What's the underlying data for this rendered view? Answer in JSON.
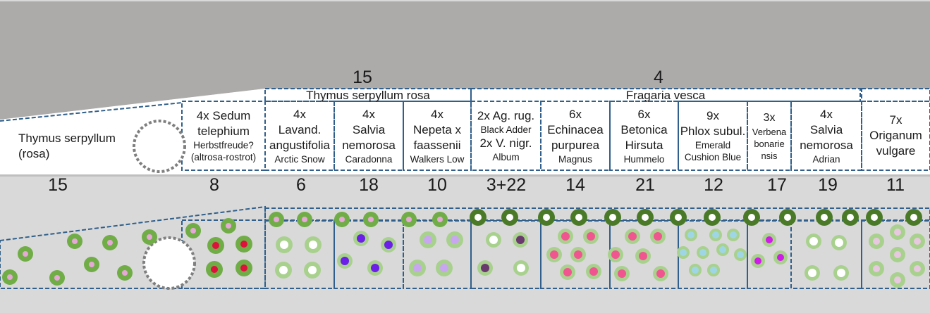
{
  "top_numbers": [
    "15",
    "4"
  ],
  "groups": [
    "Thymus serpyllum rosa",
    "Fragaria vesca"
  ],
  "beds": [
    {
      "big": [
        "Thymus serpyllum",
        "(rosa)"
      ],
      "small": []
    },
    {
      "big": [
        "4x Sedum",
        "telephium"
      ],
      "small": [
        "Herbstfreude?",
        "(altrosa-rostrot)"
      ]
    },
    {
      "big": [
        "4x",
        "Lavand.",
        "angustifolia"
      ],
      "small": [
        "Arctic Snow"
      ]
    },
    {
      "big": [
        "4x",
        "Salvia",
        "nemorosa"
      ],
      "small": [
        "Caradonna"
      ]
    },
    {
      "big": [
        "4x",
        "Nepeta x",
        "faassenii"
      ],
      "small": [
        "Walkers Low"
      ]
    },
    {
      "big": [
        "2x Ag. rug."
      ],
      "small": [
        "Black Adder"
      ],
      "big2": [
        "2x V. nigr."
      ],
      "small2": [
        "Album"
      ]
    },
    {
      "big": [
        "6x",
        "Echinacea",
        "purpurea"
      ],
      "small": [
        "Magnus"
      ]
    },
    {
      "big": [
        "6x",
        "Betonica",
        "Hirsuta"
      ],
      "small": [
        "Hummelo"
      ]
    },
    {
      "big": [
        "9x",
        "Phlox subul."
      ],
      "small": [
        "Emerald",
        "Cushion Blue"
      ]
    },
    {
      "big": [
        "3x"
      ],
      "small": [
        "Verbena",
        "bonarie",
        "nsis"
      ]
    },
    {
      "big": [
        "4x",
        "Salvia",
        "nemorosa"
      ],
      "small": [
        "Adrian"
      ]
    },
    {
      "big": [
        "7x",
        "Origanum",
        "vulgare"
      ],
      "small": []
    }
  ],
  "bed_numbers": [
    "15",
    "8",
    "6",
    "18",
    "10",
    "3+22",
    "14",
    "21",
    "12",
    "17",
    "19",
    "11"
  ],
  "colors": {
    "wall": "#adaaaa",
    "ground": "#d9d9d9",
    "dash": "#2f5f8a",
    "dark_green": "#4a7a28",
    "mid_green": "#70ad47",
    "light_green": "#a9d18e",
    "pink": "#e6a8d7",
    "red": "#e0103c",
    "violet": "#6b1fe8",
    "lilac": "#c9a6f0",
    "hotpink": "#f0558f",
    "magenta": "#d01ae8",
    "plum": "#6a3a6e",
    "lightblue": "#9fd6e6",
    "circle_grey": "#7f7f7f"
  }
}
